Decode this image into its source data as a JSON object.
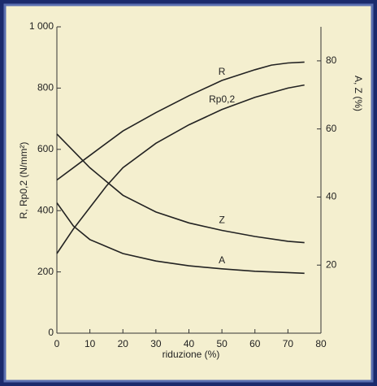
{
  "chart_data": {
    "type": "line",
    "x_label": "riduzione (%)",
    "y_label": "R, Rp0,2 (N/mm²)",
    "y2_label": "A, Z (%)",
    "xlim": [
      0,
      80
    ],
    "xticks": [
      0,
      10,
      20,
      30,
      40,
      50,
      60,
      70,
      80
    ],
    "ylim": [
      0,
      1000
    ],
    "yticks": [
      0,
      200,
      400,
      600,
      800,
      {
        "value": 1000,
        "label": "1 000"
      }
    ],
    "y2lim": [
      0,
      90
    ],
    "y2ticks": [
      20,
      40,
      60,
      80
    ],
    "series": [
      {
        "name": "R",
        "color": "#222222",
        "x": [
          0,
          10,
          20,
          30,
          40,
          50,
          60,
          65,
          70,
          75
        ],
        "values": [
          500,
          580,
          660,
          720,
          775,
          825,
          860,
          875,
          882,
          885
        ]
      },
      {
        "name": "Rp0,2",
        "color": "#222222",
        "x": [
          0,
          5,
          10,
          15,
          20,
          30,
          40,
          50,
          60,
          70,
          75
        ],
        "values": [
          260,
          340,
          410,
          480,
          540,
          620,
          680,
          730,
          770,
          800,
          810
        ]
      },
      {
        "name": "Z",
        "color": "#222222",
        "axis": "y2",
        "x": [
          0,
          10,
          20,
          30,
          40,
          50,
          60,
          70,
          75
        ],
        "values": [
          58.5,
          48.6,
          40.5,
          35.6,
          32.4,
          30.2,
          28.4,
          27,
          26.6
        ]
      },
      {
        "name": "A",
        "color": "#222222",
        "axis": "y2",
        "x": [
          0,
          5,
          10,
          20,
          30,
          40,
          50,
          60,
          70,
          75
        ],
        "values": [
          38.3,
          31.5,
          27.5,
          23.4,
          21.2,
          19.8,
          18.9,
          18.2,
          17.8,
          17.6
        ]
      }
    ]
  }
}
